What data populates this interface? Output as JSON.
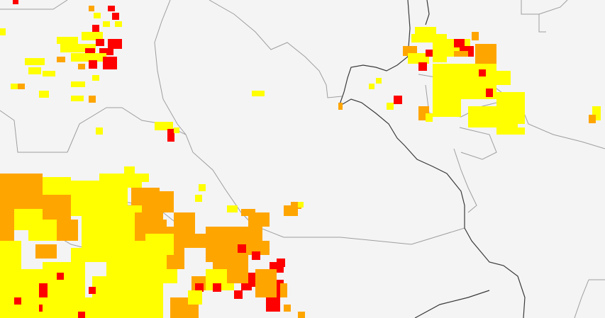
{
  "map": {
    "background_color": "#f4f4f4",
    "border_color": "#9e9e9e",
    "river_color": "#3a3a3a",
    "legend_visible": false,
    "labels_visible": false
  },
  "risk_levels": [
    {
      "level": "low",
      "color": "#ffff00"
    },
    {
      "level": "moderate",
      "color": "#ffa500"
    },
    {
      "level": "high",
      "color": "#ff0000"
    }
  ]
}
